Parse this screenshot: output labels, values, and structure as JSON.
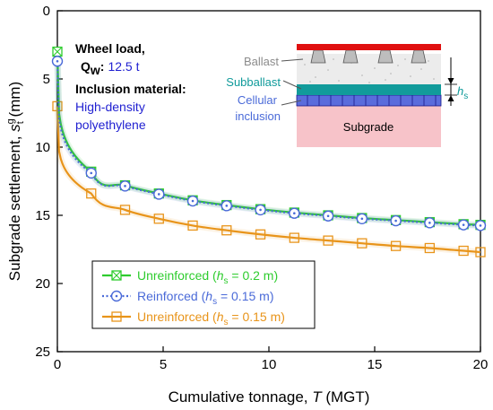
{
  "chart_data": {
    "type": "line",
    "xlabel_main": "Cumulative tonnage, ",
    "xlabel_var": "T",
    "xlabel_unit": " (MGT)",
    "ylabel_main": "Subgrade settlement, ",
    "ylabel_var": "s",
    "ylabel_sub": "t",
    "ylabel_sup": "g",
    "ylabel_unit": " (mm)",
    "xlim": [
      0,
      20
    ],
    "ylim": [
      0,
      25
    ],
    "y_inverted": true,
    "xticks": [
      0,
      5,
      10,
      15,
      20
    ],
    "yticks": [
      0,
      5,
      10,
      15,
      20,
      25
    ],
    "grid": false,
    "legend_position": "bottom-left",
    "series": [
      {
        "name": "Unreinforced (hs = 0.2 m)",
        "legend_prefix": "Unreinforced (",
        "legend_var": "h",
        "legend_sub": "s",
        "legend_suffix": " = 0.2 m)",
        "color": "#2ecc2e",
        "marker": "square-x",
        "dash": "solid",
        "x": [
          0,
          1.6,
          3.2,
          4.8,
          6.4,
          8.0,
          9.6,
          11.2,
          12.8,
          14.4,
          16.0,
          17.6,
          19.2,
          20.0
        ],
        "y": [
          3.0,
          11.8,
          12.8,
          13.4,
          13.9,
          14.25,
          14.55,
          14.8,
          15.0,
          15.2,
          15.35,
          15.5,
          15.65,
          15.7
        ]
      },
      {
        "name": "Reinforced (hs = 0.15 m)",
        "legend_prefix": "Reinforced (",
        "legend_var": "h",
        "legend_sub": "s",
        "legend_suffix": " = 0.15 m)",
        "color": "#4a6ad8",
        "marker": "circle-dot",
        "dash": "dotted",
        "x": [
          0,
          1.6,
          3.2,
          4.8,
          6.4,
          8.0,
          9.6,
          11.2,
          12.8,
          14.4,
          16.0,
          17.6,
          19.2,
          20.0
        ],
        "y": [
          3.7,
          11.9,
          12.85,
          13.45,
          13.95,
          14.3,
          14.6,
          14.85,
          15.05,
          15.25,
          15.4,
          15.55,
          15.7,
          15.75
        ]
      },
      {
        "name": "Unreinforced (hs = 0.15 m)",
        "legend_prefix": "Unreinforced (",
        "legend_var": "h",
        "legend_sub": "s",
        "legend_suffix": " = 0.15 m)",
        "color": "#e8941a",
        "marker": "square",
        "dash": "solid",
        "x": [
          0,
          1.6,
          3.2,
          4.8,
          6.4,
          8.0,
          9.6,
          11.2,
          12.8,
          14.4,
          16.0,
          17.6,
          19.2,
          20.0
        ],
        "y": [
          7.0,
          13.4,
          14.6,
          15.25,
          15.75,
          16.1,
          16.4,
          16.65,
          16.85,
          17.05,
          17.25,
          17.4,
          17.6,
          17.7
        ]
      }
    ],
    "annotations": {
      "wheel_load_line1": "Wheel load,",
      "wheel_load_var": "Q",
      "wheel_load_sub": "w",
      "wheel_load_colon": ":",
      "wheel_load_value": "12.5 t",
      "inclusion_title": "Inclusion material:",
      "inclusion_line1": "High-density",
      "inclusion_line2": "polyethylene"
    },
    "schematic": {
      "ballast": "Ballast",
      "subballast": "Subballast",
      "cellular_line1": "Cellular",
      "cellular_line2": "inclusion",
      "subgrade": "Subgrade",
      "hs_var": "h",
      "hs_sub": "s"
    },
    "colors": {
      "green": "#2ecc2e",
      "blue": "#4a6ad8",
      "orange": "#e8941a",
      "rail": "#e01010",
      "teal": "#0f9a9a",
      "subgrade": "#f5b8c0",
      "annotation_blue": "#1f1fd1"
    }
  }
}
